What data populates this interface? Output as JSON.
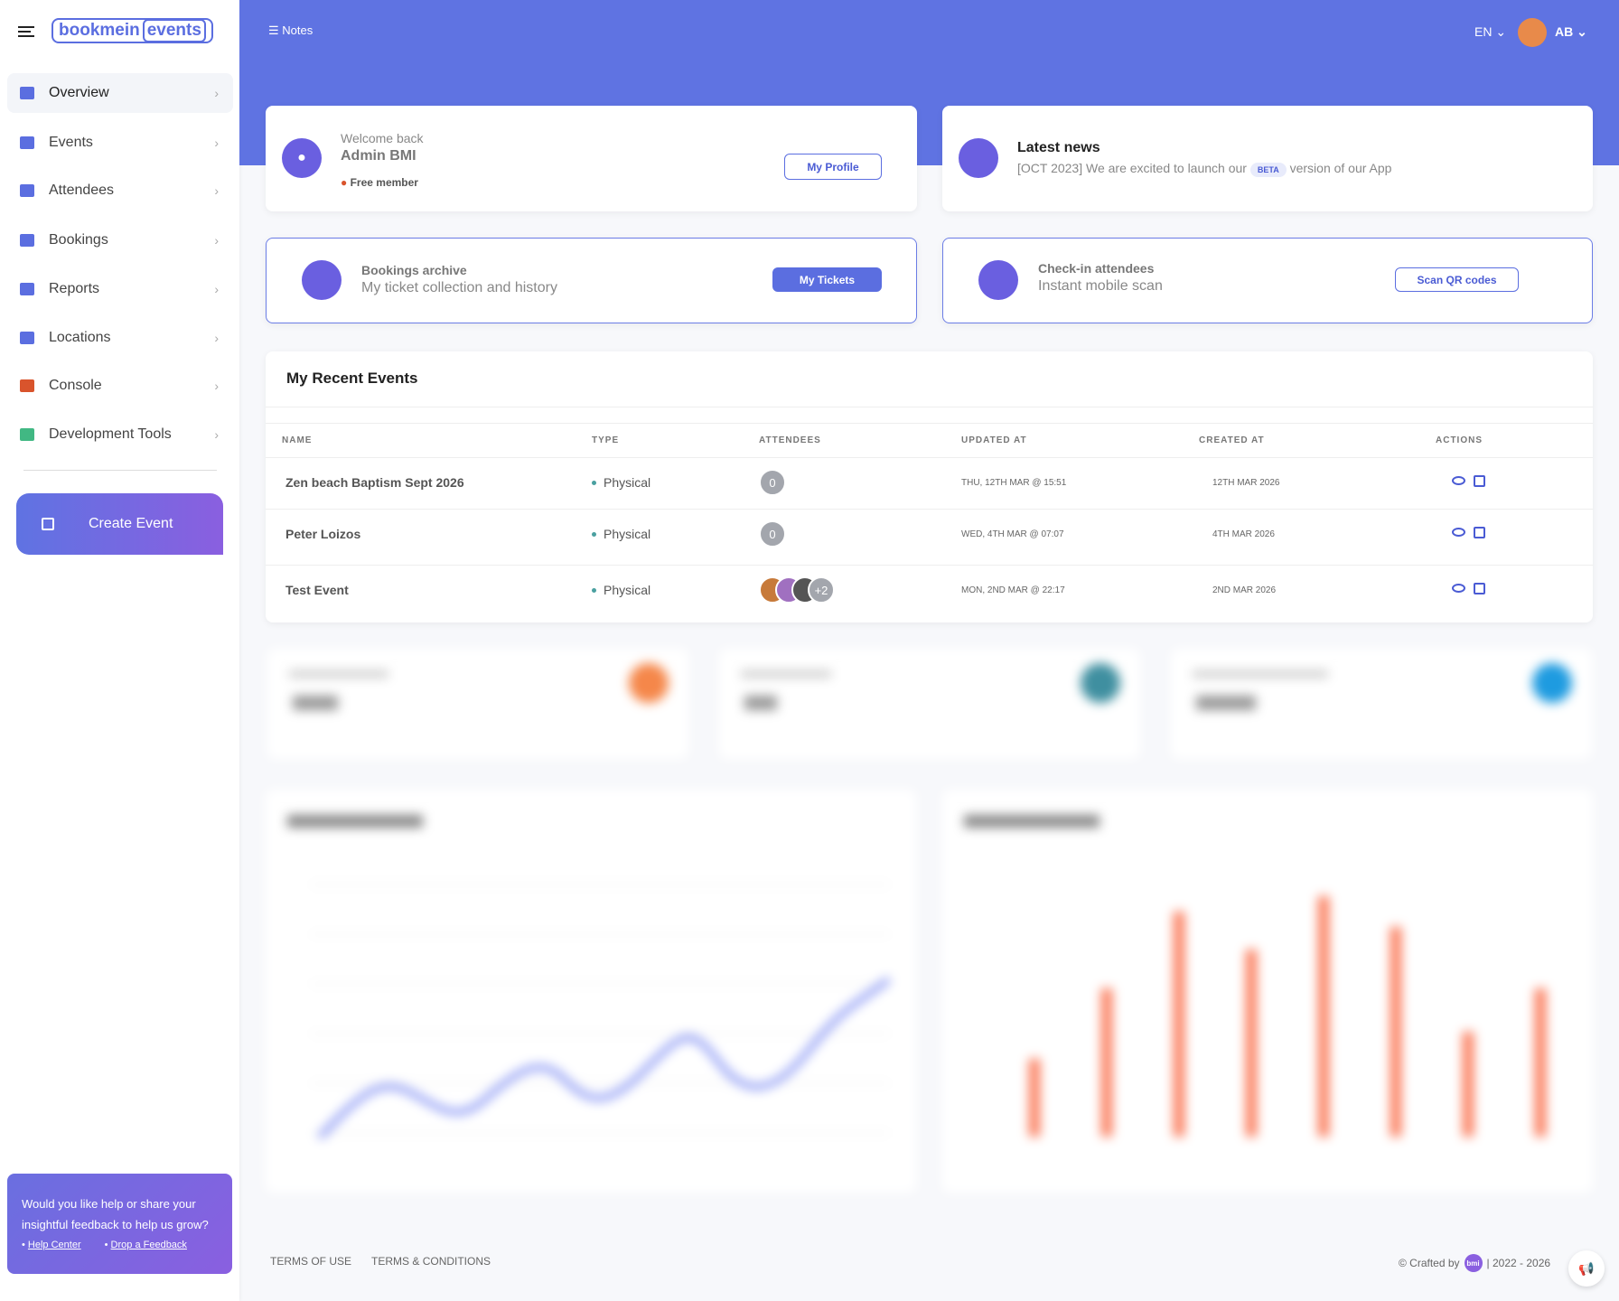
{
  "header": {
    "logo_main": "bookmein",
    "logo_accent": "events",
    "notes": "Notes",
    "language": "EN",
    "user_initials": "AB"
  },
  "sidebar": {
    "menu": [
      "Overview",
      "Events",
      "Attendees",
      "Bookings",
      "Reports",
      "Locations",
      "Console",
      "Development Tools"
    ],
    "create_event": "Create Event",
    "feedback": {
      "text": "Would you like help or share your insightful feedback to help us grow?",
      "links": [
        "Help Center",
        "Drop a Feedback"
      ]
    }
  },
  "welcome": {
    "greeting": "Welcome back",
    "name": "Admin BMI",
    "membership": "Free member",
    "button": "My Profile"
  },
  "news": {
    "title": "Latest news",
    "text_before": "[OCT 2023] We are excited to launch our",
    "badge": "BETA",
    "text_after": "version of our App"
  },
  "bookings": {
    "title": "Bookings archive",
    "subtitle": "My ticket collection and history",
    "button": "My Tickets"
  },
  "checkin": {
    "title": "Check-in attendees",
    "subtitle": "Instant mobile scan",
    "button": "Scan QR codes"
  },
  "recent_events": {
    "title": "My Recent Events",
    "columns": [
      "NAME",
      "TYPE",
      "ATTENDEES",
      "UPDATED AT",
      "CREATED AT",
      "ACTIONS"
    ],
    "rows": [
      {
        "name": "Zen beach Baptism Sept 2026",
        "type": "Physical",
        "attendees": "0",
        "updated_at": "THU, 12TH MAR @ 15:51",
        "created_at": "12TH MAR 2026"
      },
      {
        "name": "Peter Loizos",
        "type": "Physical",
        "attendees": "0",
        "updated_at": "WED, 4TH MAR @ 07:07",
        "created_at": "4TH MAR 2026"
      },
      {
        "name": "Test Event",
        "type": "Physical",
        "attendees": "+2",
        "updated_at": "MON, 2ND MAR @ 22:17",
        "created_at": "2ND MAR 2026"
      }
    ]
  },
  "footer": {
    "links": [
      "TERMS OF USE",
      "TERMS & CONDITIONS"
    ],
    "crafted_by": "© Crafted by",
    "badge": "bmi",
    "years": "| 2022 - 2026"
  }
}
